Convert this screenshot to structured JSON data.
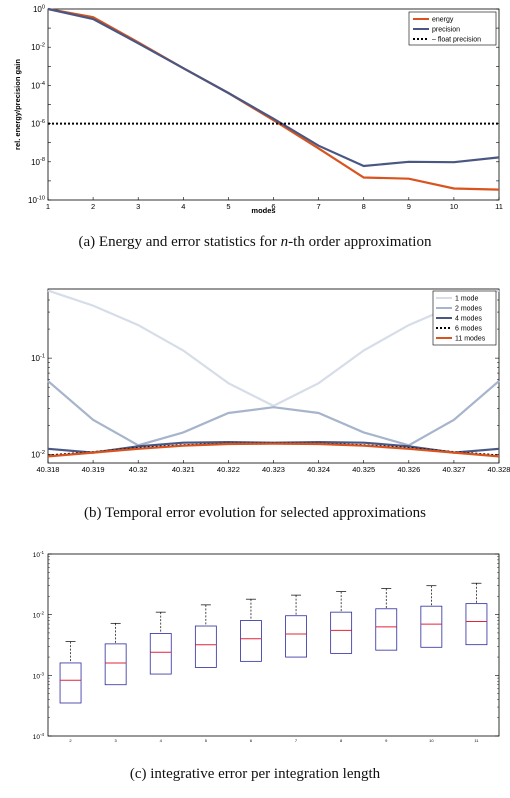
{
  "captions": {
    "a": "(a) Energy and error statistics for n-th order approximation",
    "b": "(b) Temporal error evolution for selected approximations",
    "c": "(c) integrative error per integration length"
  },
  "chart_data": [
    {
      "id": "a",
      "type": "line",
      "title": "",
      "xlabel": "modes",
      "ylabel": "rel. energy/precision gain",
      "yscale": "log",
      "xlim": [
        1,
        11
      ],
      "ylim_exp": [
        -10,
        0
      ],
      "x": [
        1,
        2,
        3,
        4,
        5,
        6,
        7,
        8,
        9,
        10,
        11
      ],
      "xticks": [
        "1",
        "2",
        "3",
        "4",
        "5",
        "6",
        "7",
        "8",
        "9",
        "10",
        "11"
      ],
      "yticks": [
        "10^0",
        "10^-2",
        "10^-4",
        "10^-6",
        "10^-8",
        "10^-10"
      ],
      "legend_position": "top-right",
      "series": [
        {
          "name": "energy",
          "color": "#d9531e",
          "style": "solid",
          "values": [
            1.0,
            0.37,
            0.018,
            0.0008,
            4e-05,
            1.5e-06,
            5e-08,
            1.5e-09,
            1.3e-09,
            4e-10,
            3.5e-10
          ]
        },
        {
          "name": "precision",
          "color": "#4a5783",
          "style": "solid",
          "values": [
            1.0,
            0.3,
            0.016,
            0.0008,
            4e-05,
            1.8e-06,
            7e-08,
            6e-09,
            1e-08,
            9.5e-09,
            1.7e-08
          ]
        },
        {
          "name": "– float precision",
          "color": "#000000",
          "style": "dotted",
          "values": [
            1e-06,
            1e-06,
            1e-06,
            1e-06,
            1e-06,
            1e-06,
            1e-06,
            1e-06,
            1e-06,
            1e-06,
            1e-06
          ]
        }
      ]
    },
    {
      "id": "b",
      "type": "line",
      "title": "",
      "xlabel": "",
      "ylabel": "",
      "yscale": "log",
      "xlim": [
        40.318,
        40.328
      ],
      "ylim": [
        0.0082,
        0.52
      ],
      "x": [
        40.318,
        40.319,
        40.32,
        40.321,
        40.322,
        40.323,
        40.324,
        40.325,
        40.326,
        40.327,
        40.328
      ],
      "xticks": [
        "40.318",
        "40.319",
        "40.32",
        "40.321",
        "40.322",
        "40.323",
        "40.324",
        "40.325",
        "40.326",
        "40.327",
        "40.328"
      ],
      "yticks": [
        "10^-1",
        "10^-2"
      ],
      "legend_position": "top-right",
      "series": [
        {
          "name": "1 mode",
          "color": "#d6dde8",
          "style": "solid",
          "values": [
            0.5,
            0.35,
            0.22,
            0.12,
            0.055,
            0.032,
            0.055,
            0.12,
            0.22,
            0.35,
            0.5
          ]
        },
        {
          "name": "2 modes",
          "color": "#a7b5cc",
          "style": "solid",
          "values": [
            0.058,
            0.023,
            0.0125,
            0.017,
            0.027,
            0.031,
            0.027,
            0.017,
            0.0125,
            0.023,
            0.058
          ]
        },
        {
          "name": "4 modes",
          "color": "#4a5783",
          "style": "solid",
          "values": [
            0.0115,
            0.0105,
            0.0122,
            0.0133,
            0.0135,
            0.0133,
            0.0135,
            0.0133,
            0.0122,
            0.0105,
            0.0115
          ]
        },
        {
          "name": "6 modes",
          "color": "#000000",
          "style": "dotted",
          "values": [
            0.0098,
            0.0106,
            0.0117,
            0.0125,
            0.013,
            0.0131,
            0.013,
            0.0125,
            0.0117,
            0.0106,
            0.0098
          ]
        },
        {
          "name": "11 modes",
          "color": "#d9531e",
          "style": "solid",
          "values": [
            0.0096,
            0.0105,
            0.0115,
            0.0124,
            0.0129,
            0.013,
            0.0129,
            0.0124,
            0.0115,
            0.0105,
            0.0096
          ]
        }
      ]
    },
    {
      "id": "c",
      "type": "box",
      "title": "",
      "xlabel": "",
      "ylabel": "",
      "yscale": "log",
      "ylim_exp": [
        -4,
        -1
      ],
      "yticks": [
        "10^-1",
        "10^-2",
        "10^-3",
        "10^-4"
      ],
      "categories": [
        "2",
        "3",
        "4",
        "5",
        "6",
        "7",
        "8",
        "9",
        "10",
        "11"
      ],
      "boxes": [
        {
          "whisker_low": 0.00035,
          "q1": 0.00035,
          "median": 0.00083,
          "q3": 0.0016,
          "whisker_high": 0.0036
        },
        {
          "whisker_low": 0.0007,
          "q1": 0.0007,
          "median": 0.0016,
          "q3": 0.0033,
          "whisker_high": 0.0072
        },
        {
          "whisker_low": 0.00105,
          "q1": 0.00105,
          "median": 0.0024,
          "q3": 0.0049,
          "whisker_high": 0.011
        },
        {
          "whisker_low": 0.00135,
          "q1": 0.00135,
          "median": 0.0032,
          "q3": 0.0065,
          "whisker_high": 0.0145
        },
        {
          "whisker_low": 0.0017,
          "q1": 0.0017,
          "median": 0.004,
          "q3": 0.008,
          "whisker_high": 0.018
        },
        {
          "whisker_low": 0.002,
          "q1": 0.002,
          "median": 0.0048,
          "q3": 0.0096,
          "whisker_high": 0.021
        },
        {
          "whisker_low": 0.0023,
          "q1": 0.0023,
          "median": 0.0055,
          "q3": 0.011,
          "whisker_high": 0.024
        },
        {
          "whisker_low": 0.0026,
          "q1": 0.0026,
          "median": 0.0063,
          "q3": 0.0125,
          "whisker_high": 0.027
        },
        {
          "whisker_low": 0.0029,
          "q1": 0.0029,
          "median": 0.007,
          "q3": 0.0138,
          "whisker_high": 0.03
        },
        {
          "whisker_low": 0.0032,
          "q1": 0.0032,
          "median": 0.0077,
          "q3": 0.0152,
          "whisker_high": 0.033
        }
      ],
      "box_color": "#2b2b9e",
      "median_color": "#e0243a",
      "whisker_color": "#000000"
    }
  ]
}
